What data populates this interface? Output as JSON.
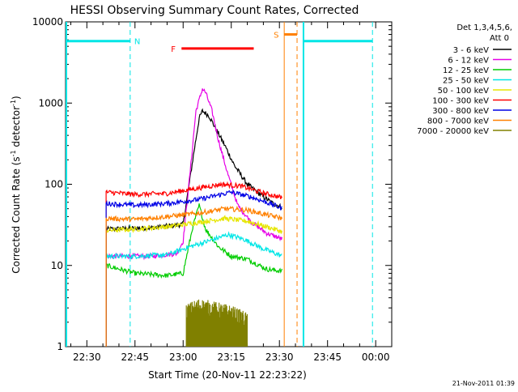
{
  "chart_data": {
    "type": "line",
    "title": "HESSI Observing Summary Count Rates, Corrected",
    "xlabel": "Start Time (20-Nov-11 22:23:22)",
    "ylabel_main": "Corrected Count Rate (s",
    "ylabel_sup1": "-1",
    "ylabel_mid": " detector",
    "ylabel_sup2": "-1",
    "ylabel_end": ")",
    "y_scale": "log",
    "ylim": [
      1,
      10000
    ],
    "xlim": [
      "22:23:22",
      "00:05"
    ],
    "x_ticks": [
      "22:30",
      "22:45",
      "23:00",
      "23:15",
      "23:30",
      "23:45",
      "00:00"
    ],
    "y_ticks": [
      "1",
      "10",
      "100",
      "1000",
      "10000"
    ],
    "footer_date": "21-Nov-2011 01:39",
    "legend_placement": "right",
    "legend_header": [
      "Det 1,3,4,5,6,",
      "Att 0"
    ],
    "series": [
      {
        "name": "3 - 6 keV",
        "color": "#000000",
        "points": [
          [
            "22:36",
            28
          ],
          [
            "22:50",
            29
          ],
          [
            "23:00",
            32
          ],
          [
            "23:03",
            200
          ],
          [
            "23:05",
            650
          ],
          [
            "23:06",
            800
          ],
          [
            "23:08",
            700
          ],
          [
            "23:10",
            500
          ],
          [
            "23:13",
            300
          ],
          [
            "23:16",
            170
          ],
          [
            "23:20",
            100
          ],
          [
            "23:24",
            75
          ],
          [
            "23:28",
            58
          ],
          [
            "23:31",
            52
          ]
        ]
      },
      {
        "name": "6 - 12 keV",
        "color": "#e600e6",
        "points": [
          [
            "22:36",
            13
          ],
          [
            "22:50",
            13
          ],
          [
            "22:58",
            14
          ],
          [
            "23:00",
            20
          ],
          [
            "23:02",
            120
          ],
          [
            "23:04",
            800
          ],
          [
            "23:06",
            1500
          ],
          [
            "23:07",
            1350
          ],
          [
            "23:09",
            800
          ],
          [
            "23:11",
            350
          ],
          [
            "23:14",
            130
          ],
          [
            "23:17",
            55
          ],
          [
            "23:21",
            35
          ],
          [
            "23:26",
            25
          ],
          [
            "23:31",
            21
          ]
        ]
      },
      {
        "name": "12 - 25 keV",
        "color": "#00cc00",
        "points": [
          [
            "22:36",
            10
          ],
          [
            "22:45",
            8
          ],
          [
            "22:55",
            7.5
          ],
          [
            "23:00",
            8
          ],
          [
            "23:03",
            30
          ],
          [
            "23:05",
            55
          ],
          [
            "23:07",
            28
          ],
          [
            "23:11",
            17
          ],
          [
            "23:15",
            13
          ],
          [
            "23:20",
            12
          ],
          [
            "23:26",
            9
          ],
          [
            "23:31",
            8.5
          ]
        ]
      },
      {
        "name": "25 - 50 keV",
        "color": "#00e6e6",
        "points": [
          [
            "22:36",
            13
          ],
          [
            "22:45",
            13
          ],
          [
            "22:55",
            13.5
          ],
          [
            "23:02",
            17
          ],
          [
            "23:08",
            20
          ],
          [
            "23:14",
            24
          ],
          [
            "23:19",
            21
          ],
          [
            "23:25",
            16
          ],
          [
            "23:31",
            13
          ]
        ]
      },
      {
        "name": "50 - 100 keV",
        "color": "#e6e600",
        "points": [
          [
            "22:36",
            27
          ],
          [
            "22:45",
            28
          ],
          [
            "22:55",
            30
          ],
          [
            "23:05",
            34
          ],
          [
            "23:13",
            38
          ],
          [
            "23:20",
            35
          ],
          [
            "23:26",
            30
          ],
          [
            "23:31",
            26
          ]
        ]
      },
      {
        "name": "100 - 300 keV",
        "color": "#ff0000",
        "points": [
          [
            "22:36",
            80
          ],
          [
            "22:45",
            75
          ],
          [
            "22:55",
            77
          ],
          [
            "23:05",
            90
          ],
          [
            "23:12",
            100
          ],
          [
            "23:18",
            95
          ],
          [
            "23:25",
            78
          ],
          [
            "23:31",
            68
          ]
        ]
      },
      {
        "name": "300 - 800 keV",
        "color": "#0000e6",
        "points": [
          [
            "22:36",
            58
          ],
          [
            "22:45",
            55
          ],
          [
            "22:55",
            58
          ],
          [
            "23:05",
            65
          ],
          [
            "23:15",
            80
          ],
          [
            "23:21",
            70
          ],
          [
            "23:27",
            58
          ],
          [
            "23:31",
            50
          ]
        ]
      },
      {
        "name": "800 - 7000 keV",
        "color": "#ff8000",
        "points": [
          [
            "22:36",
            38
          ],
          [
            "22:45",
            37
          ],
          [
            "22:55",
            40
          ],
          [
            "23:05",
            44
          ],
          [
            "23:13",
            50
          ],
          [
            "23:20",
            48
          ],
          [
            "23:26",
            42
          ],
          [
            "23:31",
            38
          ]
        ]
      },
      {
        "name": "7000 - 20000 keV",
        "color": "#808000",
        "points": [
          [
            "23:01",
            2.8
          ],
          [
            "23:05",
            3.3
          ],
          [
            "23:10",
            3.0
          ],
          [
            "23:15",
            2.7
          ],
          [
            "23:20",
            2.2
          ]
        ]
      }
    ],
    "markers": [
      {
        "label": "N",
        "color": "#00e6e6"
      },
      {
        "label": "F",
        "color": "#ff0000"
      },
      {
        "label": "S",
        "color": "#ff8000"
      }
    ]
  }
}
